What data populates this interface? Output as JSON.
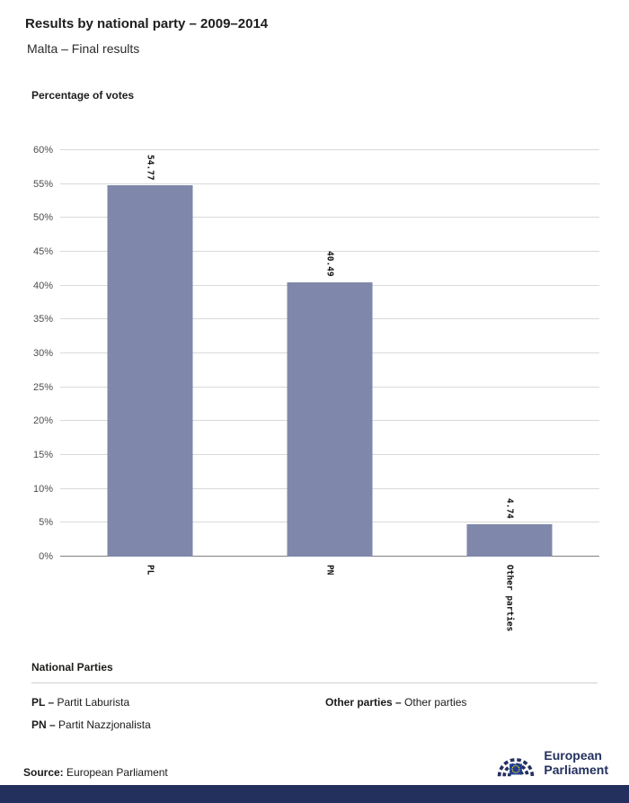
{
  "header": {
    "title": "Results by national party – 2009–2014",
    "subtitle": "Malta – Final results"
  },
  "chart_data": {
    "type": "bar",
    "title": "Percentage of votes",
    "categories": [
      "PL",
      "PN",
      "Other parties"
    ],
    "values": [
      54.77,
      40.49,
      4.74
    ],
    "value_labels": [
      "54.77",
      "40.49",
      "4.74"
    ],
    "xlabel": "",
    "ylabel": "Percentage of votes",
    "ylim": [
      0,
      60
    ],
    "ytick_step": 5,
    "ytick_suffix": "%",
    "grid": true,
    "legend_position": "below-chart"
  },
  "legend": {
    "heading": "National Parties",
    "columns": {
      "left": [
        {
          "abbr": "PL –",
          "name": "Partit Laburista"
        },
        {
          "abbr": "PN –",
          "name": "Partit Nazzjonalista"
        }
      ],
      "right": [
        {
          "abbr": "Other parties –",
          "name": "Other parties"
        }
      ]
    }
  },
  "footer": {
    "source_label": "Source:",
    "source_text": "European Parliament",
    "logo_line1": "European",
    "logo_line2": "Parliament"
  },
  "colors": {
    "bar": "#7f88aa",
    "navy": "#24305e",
    "bottom_bar": "#232f5c",
    "gridline": "#d9d9d9",
    "baseline": "#808080",
    "flag_blue": "#1c3f94",
    "star_yellow": "#ffd617"
  }
}
